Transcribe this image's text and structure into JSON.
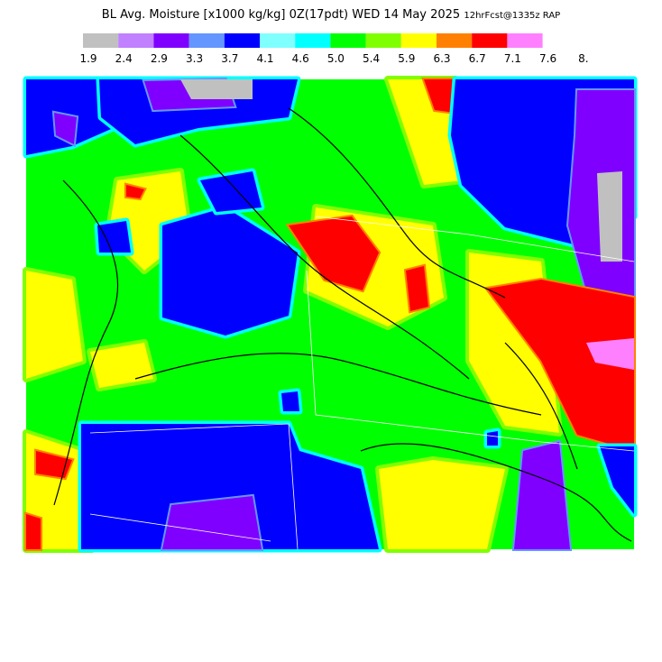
{
  "header": {
    "title": "BL Avg. Moisture [x1000 kg/kg] 0Z(17pdt) WED 14 May 2025",
    "subtitle": "12hrFcst@1335z RAP"
  },
  "color_scale": {
    "colors": [
      "#c0c0c0",
      "#c080ff",
      "#8000ff",
      "#6496ff",
      "#0000ff",
      "#80ffff",
      "#00ffff",
      "#00ff00",
      "#80ff00",
      "#ffff00",
      "#ff8000",
      "#ff0000",
      "#ff80ff"
    ],
    "labels": [
      "1.9",
      "2.4",
      "2.9",
      "3.3",
      "3.7",
      "4.1",
      "4.6",
      "5.0",
      "5.4",
      "5.9",
      "6.3",
      "6.7",
      "7.1",
      "7.6",
      "8."
    ]
  }
}
